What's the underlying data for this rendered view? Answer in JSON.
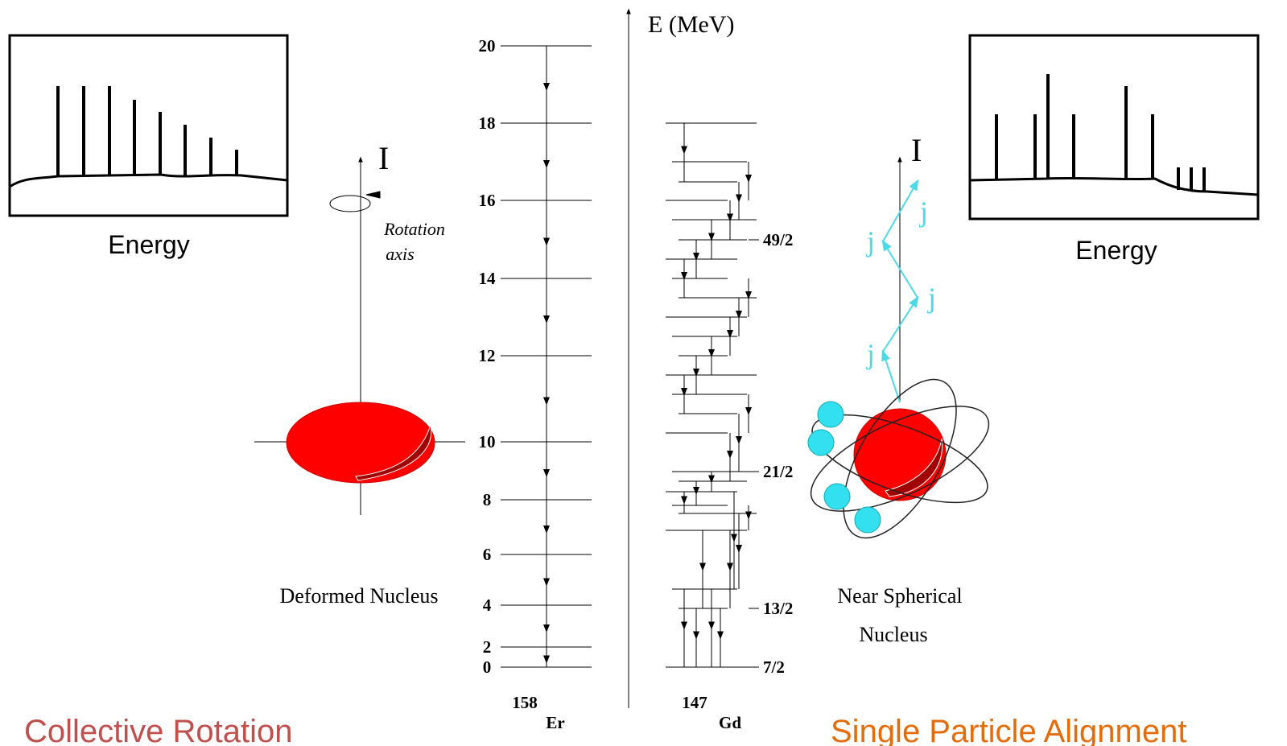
{
  "left_panel": {
    "spectrum_label": "Energy",
    "axis_label": "I",
    "rotation_label": [
      "Rotation",
      "axis"
    ],
    "nucleus_label": "Deformed Nucleus",
    "caption": "Collective Rotation"
  },
  "level_scheme": {
    "axis_label": "E (MeV)",
    "er": {
      "mass": "158",
      "symbol": "Er",
      "levels": [
        "20",
        "18",
        "16",
        "14",
        "12",
        "10",
        "8",
        "6",
        "4",
        "2",
        "0"
      ]
    },
    "gd": {
      "mass": "147",
      "symbol": "Gd",
      "spins": [
        "49/2",
        "21/2",
        "13/2",
        "7/2"
      ]
    }
  },
  "right_panel": {
    "spectrum_label": "Energy",
    "axis_label": "I",
    "vector_labels": [
      "j",
      "j",
      "j",
      "j"
    ],
    "nucleus_label": [
      "Near Spherical",
      "Nucleus"
    ],
    "caption": "Single Particle Alignment"
  }
}
